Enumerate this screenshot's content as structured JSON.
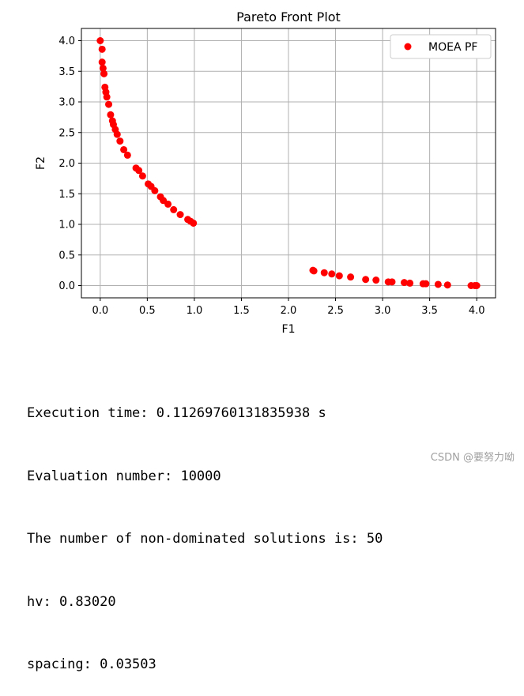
{
  "chart_data": {
    "type": "scatter",
    "title": "Pareto Front Plot",
    "xlabel": "F1",
    "ylabel": "F2",
    "xlim": [
      -0.2,
      4.2
    ],
    "ylim": [
      -0.2,
      4.2
    ],
    "xticks": [
      0.0,
      0.5,
      1.0,
      1.5,
      2.0,
      2.5,
      3.0,
      3.5,
      4.0
    ],
    "xtick_labels": [
      "0.0",
      "0.5",
      "1.0",
      "1.5",
      "2.0",
      "2.5",
      "3.0",
      "3.5",
      "4.0"
    ],
    "yticks": [
      0.0,
      0.5,
      1.0,
      1.5,
      2.0,
      2.5,
      3.0,
      3.5,
      4.0
    ],
    "ytick_labels": [
      "0.0",
      "0.5",
      "1.0",
      "1.5",
      "2.0",
      "2.5",
      "3.0",
      "3.5",
      "4.0"
    ],
    "grid": true,
    "legend_position": "top-right",
    "series": [
      {
        "name": "MOEA PF",
        "color": "#ff0000",
        "marker": "circle",
        "points": [
          [
            0.0,
            4.0
          ],
          [
            0.02,
            3.86
          ],
          [
            0.02,
            3.65
          ],
          [
            0.03,
            3.55
          ],
          [
            0.04,
            3.46
          ],
          [
            0.05,
            3.24
          ],
          [
            0.06,
            3.16
          ],
          [
            0.07,
            3.08
          ],
          [
            0.09,
            2.96
          ],
          [
            0.11,
            2.79
          ],
          [
            0.13,
            2.69
          ],
          [
            0.14,
            2.63
          ],
          [
            0.16,
            2.55
          ],
          [
            0.18,
            2.47
          ],
          [
            0.21,
            2.36
          ],
          [
            0.25,
            2.22
          ],
          [
            0.29,
            2.13
          ],
          [
            0.38,
            1.92
          ],
          [
            0.41,
            1.88
          ],
          [
            0.45,
            1.79
          ],
          [
            0.51,
            1.66
          ],
          [
            0.54,
            1.62
          ],
          [
            0.58,
            1.55
          ],
          [
            0.64,
            1.45
          ],
          [
            0.67,
            1.39
          ],
          [
            0.72,
            1.33
          ],
          [
            0.78,
            1.24
          ],
          [
            0.85,
            1.16
          ],
          [
            0.93,
            1.08
          ],
          [
            0.96,
            1.05
          ],
          [
            0.99,
            1.02
          ],
          [
            2.26,
            0.25
          ],
          [
            2.27,
            0.24
          ],
          [
            2.38,
            0.21
          ],
          [
            2.46,
            0.19
          ],
          [
            2.54,
            0.16
          ],
          [
            2.66,
            0.14
          ],
          [
            2.82,
            0.1
          ],
          [
            2.93,
            0.09
          ],
          [
            3.06,
            0.06
          ],
          [
            3.1,
            0.06
          ],
          [
            3.23,
            0.05
          ],
          [
            3.29,
            0.04
          ],
          [
            3.43,
            0.03
          ],
          [
            3.46,
            0.03
          ],
          [
            3.59,
            0.02
          ],
          [
            3.69,
            0.01
          ],
          [
            3.94,
            0.0
          ],
          [
            3.98,
            0.0
          ],
          [
            4.0,
            0.0
          ]
        ]
      }
    ]
  },
  "console": {
    "lines": [
      "Execution time: 0.11269760131835938 s",
      "Evaluation number: 10000",
      "The number of non-dominated solutions is: 50",
      "hv: 0.83020",
      "spacing: 0.03503"
    ]
  },
  "watermark": "CSDN @要努力呦"
}
